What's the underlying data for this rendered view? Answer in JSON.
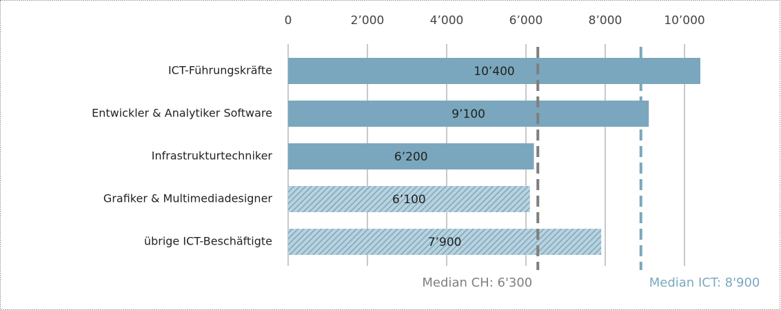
{
  "chart_data": {
    "type": "hbar",
    "categories": [
      "ICT-Führungskräfte",
      "Entwickler & Analytiker Software",
      "Infrastrukturtechniker",
      "Grafiker & Multimediadesigner",
      "übrige ICT-Beschäftigte"
    ],
    "values": [
      10400,
      9100,
      6200,
      6100,
      7900
    ],
    "value_labels": [
      "10’400",
      "9’100",
      "6’200",
      "6’100",
      "7’900"
    ],
    "hatched": [
      false,
      false,
      false,
      true,
      true
    ],
    "color": "#7aa7bd",
    "xlim": [
      0,
      12000
    ],
    "xticks": [
      0,
      {
        "value": 2000,
        "label": "2’000"
      },
      {
        "value": 4000,
        "label": "4’000"
      },
      {
        "value": 6000,
        "label": "6’000"
      },
      {
        "value": 8000,
        "label": "8’000"
      },
      {
        "value": 10000,
        "label": "10’000"
      }
    ],
    "grid": true,
    "reference_lines": [
      {
        "value": 6300,
        "label": "Median CH: 6'300",
        "color": "#7f7f7f",
        "label_position": "left"
      },
      {
        "value": 8900,
        "label": "Median ICT: 8'900",
        "color": "#7aa7bd",
        "label_position": "right"
      }
    ]
  }
}
